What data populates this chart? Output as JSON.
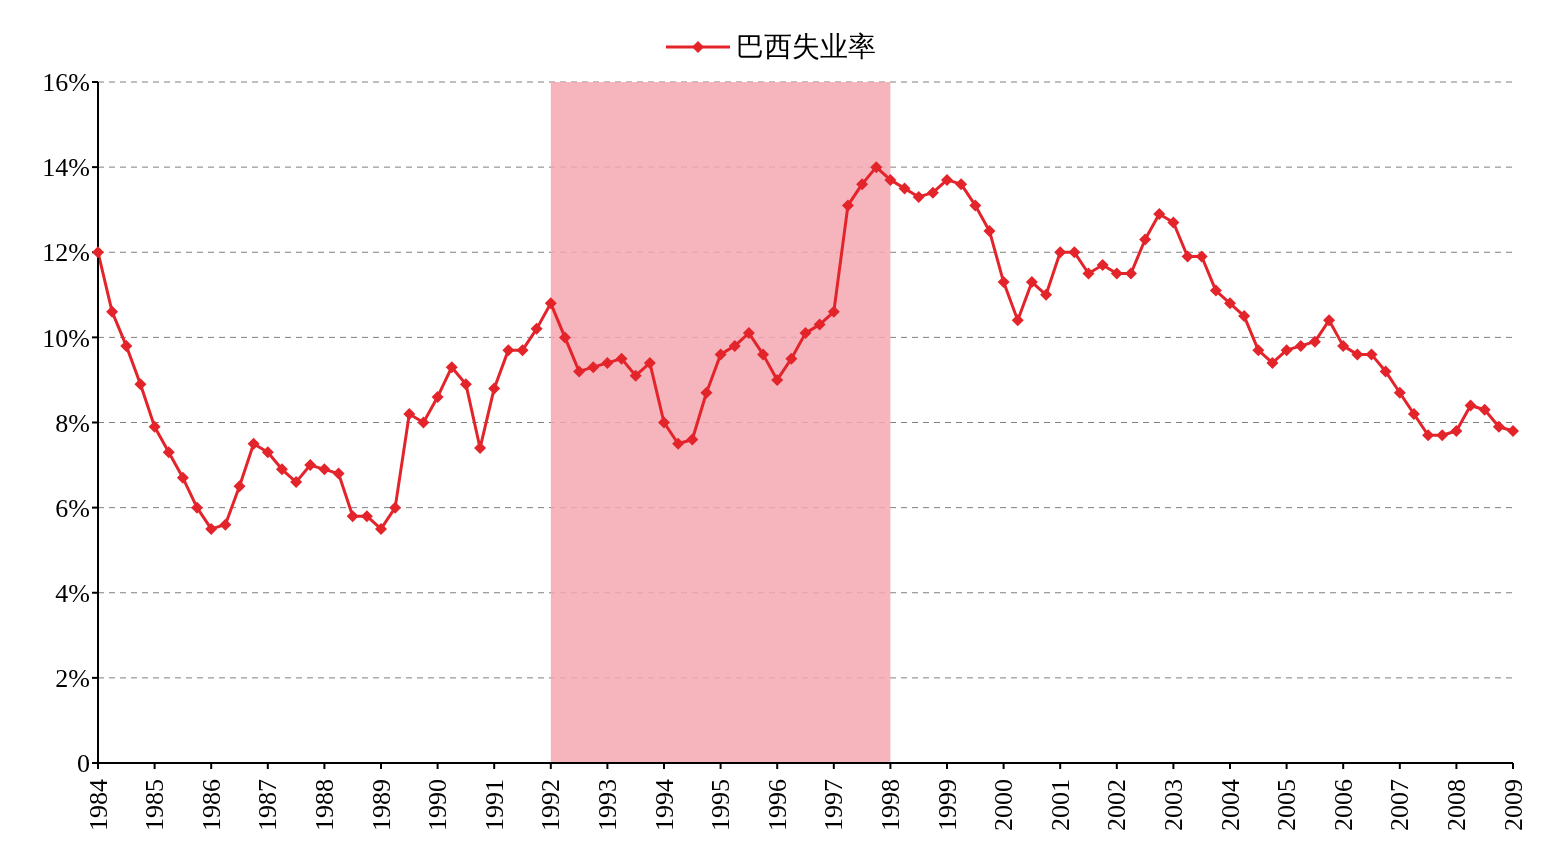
{
  "chart_data": {
    "type": "line",
    "x": [
      1984,
      1984.25,
      1984.5,
      1984.75,
      1985,
      1985.25,
      1985.5,
      1985.75,
      1986,
      1986.25,
      1986.5,
      1986.75,
      1987,
      1987.25,
      1987.5,
      1987.75,
      1988,
      1988.25,
      1988.5,
      1988.75,
      1989,
      1989.25,
      1989.5,
      1989.75,
      1990,
      1990.25,
      1990.5,
      1990.75,
      1991,
      1991.25,
      1991.5,
      1991.75,
      1992,
      1992.25,
      1992.5,
      1992.75,
      1993,
      1993.25,
      1993.5,
      1993.75,
      1994,
      1994.25,
      1994.5,
      1994.75,
      1995,
      1995.25,
      1995.5,
      1995.75,
      1996,
      1996.25,
      1996.5,
      1996.75,
      1997,
      1997.25,
      1997.5,
      1997.75,
      1998,
      1998.25,
      1998.5,
      1998.75,
      1999,
      1999.25,
      1999.5,
      1999.75,
      2000,
      2000.25,
      2000.5,
      2000.75,
      2001,
      2001.25,
      2001.5,
      2001.75,
      2002,
      2002.25,
      2002.5,
      2002.75,
      2003,
      2003.25,
      2003.5,
      2003.75,
      2004,
      2004.25,
      2004.5,
      2004.75,
      2005,
      2005.25,
      2005.5,
      2005.75,
      2006,
      2006.25,
      2006.5,
      2006.75,
      2007,
      2007.25,
      2007.5,
      2007.75,
      2008,
      2008.25,
      2008.5,
      2008.75,
      2009
    ],
    "series": [
      {
        "name": "巴西失业率",
        "color": "#e3242b",
        "values": [
          12.0,
          10.6,
          9.8,
          8.9,
          7.9,
          7.3,
          6.7,
          6.0,
          5.5,
          5.6,
          6.5,
          7.5,
          7.3,
          6.9,
          6.6,
          7.0,
          6.9,
          6.8,
          5.8,
          5.8,
          5.5,
          6.0,
          8.2,
          8.0,
          8.6,
          9.3,
          8.9,
          7.4,
          8.8,
          9.7,
          9.7,
          10.2,
          10.8,
          10.0,
          9.2,
          9.3,
          9.4,
          9.5,
          9.1,
          9.4,
          8.0,
          7.5,
          7.6,
          8.7,
          9.6,
          9.8,
          10.1,
          9.6,
          9.0,
          9.5,
          10.1,
          10.3,
          10.6,
          13.1,
          13.6,
          14.0,
          13.7,
          13.5,
          13.3,
          13.4,
          13.7,
          13.6,
          13.1,
          12.5,
          11.3,
          10.4,
          11.3,
          11.0,
          12.0,
          12.0,
          11.5,
          11.7,
          11.5,
          11.5,
          12.3,
          12.9,
          12.7,
          11.9,
          11.9,
          11.1,
          10.8,
          10.5,
          9.7,
          9.4,
          9.7,
          9.8,
          9.9,
          10.4,
          9.8,
          9.6,
          9.6,
          9.2,
          8.7,
          8.2,
          7.7,
          7.7,
          7.8,
          8.4,
          8.3,
          7.9,
          7.8
        ]
      }
    ],
    "xlim": [
      1984,
      2009
    ],
    "xticks": [
      1984,
      1985,
      1986,
      1987,
      1988,
      1989,
      1990,
      1991,
      1992,
      1993,
      1994,
      1995,
      1996,
      1997,
      1998,
      1999,
      2000,
      2001,
      2002,
      2003,
      2004,
      2005,
      2006,
      2007,
      2008,
      2009
    ],
    "ylim": [
      0,
      16
    ],
    "yticks": [
      0,
      {
        "value": 2,
        "label": "2%"
      },
      {
        "value": 4,
        "label": "4%"
      },
      {
        "value": 6,
        "label": "6%"
      },
      {
        "value": 8,
        "label": "8%"
      },
      {
        "value": 10,
        "label": "10%"
      },
      {
        "value": 12,
        "label": "12%"
      },
      {
        "value": 14,
        "label": "14%"
      },
      {
        "value": 16,
        "label": "16%"
      }
    ],
    "bands": [
      {
        "axis": "x",
        "from": 1992,
        "to": 1998,
        "color": "#f4a7b0"
      }
    ],
    "grid": "y",
    "legend": "top",
    "marker": "diamond",
    "line_style": "solid"
  }
}
